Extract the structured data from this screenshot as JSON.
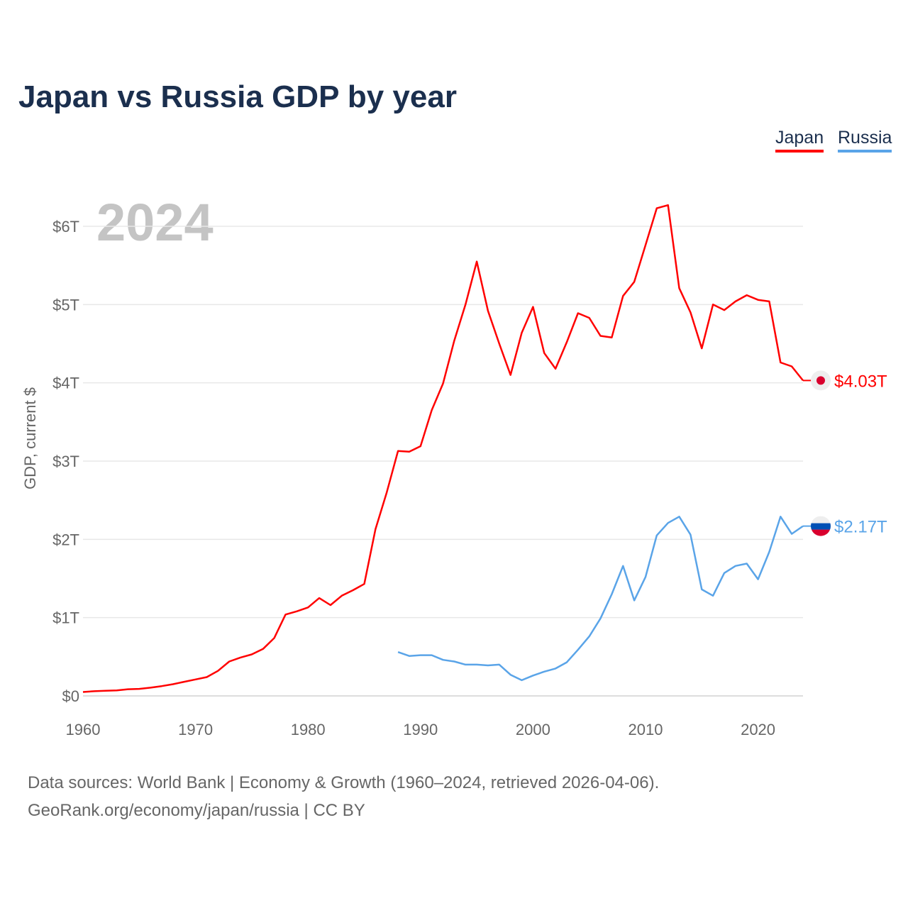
{
  "title": "Japan vs Russia GDP by year",
  "legend": [
    "Japan",
    "Russia"
  ],
  "year_label": "2024",
  "source_line1": "Data sources: World Bank | Economy & Growth (1960–2024, retrieved 2026-04-06).",
  "source_line2": "GeoRank.org/economy/japan/russia | CC BY",
  "chart_data": {
    "type": "line",
    "title": "Japan vs Russia GDP by year",
    "xlabel": "",
    "ylabel": "GDP, current $",
    "xlim": [
      1960,
      2024
    ],
    "ylim": [
      0,
      6
    ],
    "y_unit": "trillion USD",
    "yticks": [
      {
        "v": 0,
        "label": "$0"
      },
      {
        "v": 1,
        "label": "$1T"
      },
      {
        "v": 2,
        "label": "$2T"
      },
      {
        "v": 3,
        "label": "$3T"
      },
      {
        "v": 4,
        "label": "$4T"
      },
      {
        "v": 5,
        "label": "$5T"
      },
      {
        "v": 6,
        "label": "$6T"
      }
    ],
    "xticks": [
      1960,
      1970,
      1980,
      1990,
      2000,
      2010,
      2020
    ],
    "grid": true,
    "legend_position": "top-right",
    "series": [
      {
        "name": "Japan",
        "color": "#ff0000",
        "start": 1960,
        "end_label": "$4.03T",
        "values": [
          0.05,
          0.06,
          0.065,
          0.07,
          0.085,
          0.09,
          0.105,
          0.125,
          0.15,
          0.18,
          0.21,
          0.24,
          0.32,
          0.44,
          0.49,
          0.53,
          0.6,
          0.74,
          1.04,
          1.08,
          1.13,
          1.25,
          1.16,
          1.28,
          1.35,
          1.43,
          2.13,
          2.6,
          3.13,
          3.12,
          3.19,
          3.65,
          3.99,
          4.54,
          5.0,
          5.55,
          4.92,
          4.5,
          4.1,
          4.64,
          4.97,
          4.38,
          4.18,
          4.52,
          4.89,
          4.83,
          4.6,
          4.58,
          5.11,
          5.29,
          5.76,
          6.23,
          6.27,
          5.21,
          4.9,
          4.44,
          5.0,
          4.93,
          5.04,
          5.12,
          5.06,
          5.04,
          4.26,
          4.21,
          4.03
        ]
      },
      {
        "name": "Russia",
        "color": "#5aa4e8",
        "start": 1988,
        "end_label": "$2.17T",
        "values": [
          0.56,
          0.51,
          0.52,
          0.52,
          0.46,
          0.44,
          0.4,
          0.4,
          0.39,
          0.4,
          0.27,
          0.2,
          0.26,
          0.31,
          0.35,
          0.43,
          0.59,
          0.76,
          0.99,
          1.3,
          1.66,
          1.22,
          1.52,
          2.05,
          2.21,
          2.29,
          2.06,
          1.36,
          1.28,
          1.57,
          1.66,
          1.69,
          1.49,
          1.84,
          2.29,
          2.07,
          2.17
        ]
      }
    ]
  }
}
